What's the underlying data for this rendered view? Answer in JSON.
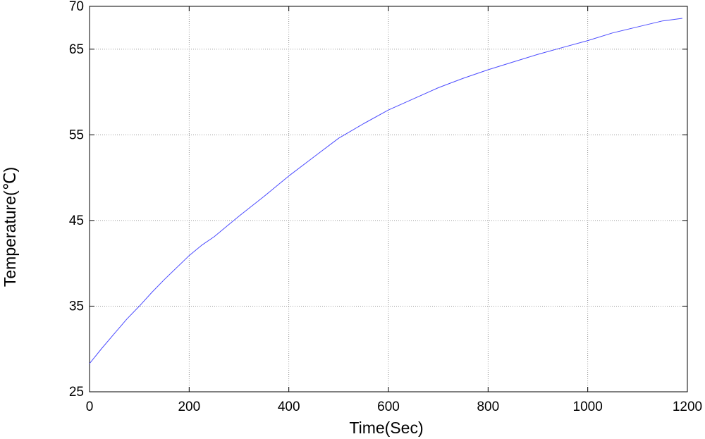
{
  "chart_data": {
    "type": "line",
    "title": "",
    "xlabel": "Time(Sec)",
    "ylabel": "Temperature(℃)",
    "xlim": [
      0,
      1200
    ],
    "ylim": [
      25,
      70
    ],
    "xticks": [
      0,
      200,
      400,
      600,
      800,
      1000,
      1200
    ],
    "yticks": [
      25,
      35,
      45,
      55,
      65,
      70
    ],
    "grid": true,
    "legend": "none",
    "series": [
      {
        "color": "#4b4bff",
        "x": [
          0,
          25,
          50,
          75,
          100,
          125,
          150,
          175,
          200,
          225,
          250,
          275,
          300,
          350,
          400,
          450,
          500,
          550,
          600,
          650,
          700,
          750,
          800,
          850,
          900,
          950,
          1000,
          1050,
          1100,
          1150,
          1190
        ],
        "y": [
          28.3,
          30.1,
          31.8,
          33.5,
          35.0,
          36.6,
          38.1,
          39.5,
          40.9,
          42.1,
          43.1,
          44.3,
          45.5,
          47.8,
          50.2,
          52.4,
          54.6,
          56.3,
          57.9,
          59.2,
          60.5,
          61.6,
          62.6,
          63.5,
          64.4,
          65.2,
          66.0,
          66.9,
          67.6,
          68.3,
          68.6
        ]
      }
    ]
  }
}
